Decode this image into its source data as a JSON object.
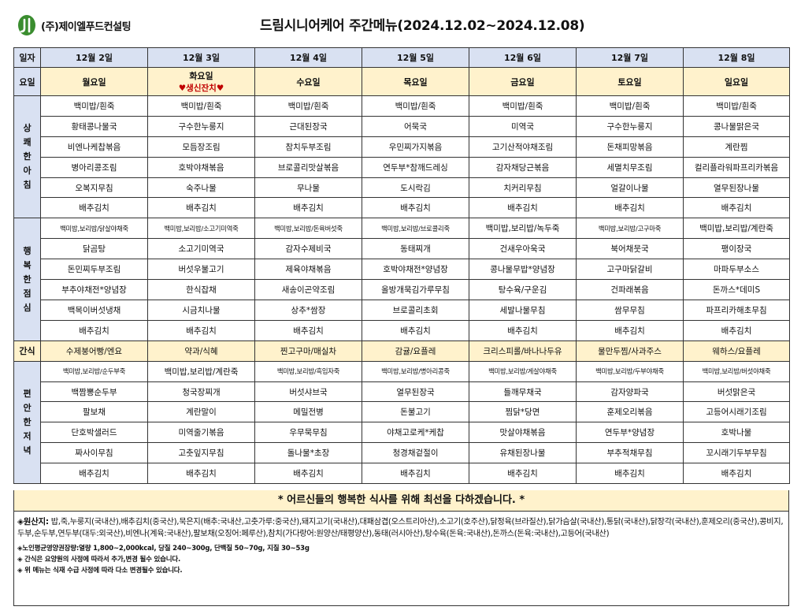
{
  "header": {
    "logo_text": "(주)제이엘푸드컨설팅",
    "title": "드림시니어케어 주간메뉴(2024.12.02~2024.12.08)"
  },
  "colors": {
    "header_blue": "#d9e1f2",
    "highlight_yellow": "#fff2cc",
    "event_red": "#c00000",
    "logo_green": "#3a8d2f"
  },
  "labels": {
    "date": "일자",
    "day": "요일",
    "snack": "간식"
  },
  "days": [
    {
      "date": "12월 2일",
      "day": "월요일",
      "event": ""
    },
    {
      "date": "12월 3일",
      "day": "화요일",
      "event": "♥생신잔치♥"
    },
    {
      "date": "12월 4일",
      "day": "수요일",
      "event": ""
    },
    {
      "date": "12월 5일",
      "day": "목요일",
      "event": ""
    },
    {
      "date": "12월 6일",
      "day": "금요일",
      "event": ""
    },
    {
      "date": "12월 7일",
      "day": "토요일",
      "event": ""
    },
    {
      "date": "12월 8일",
      "day": "일요일",
      "event": ""
    }
  ],
  "breakfast": {
    "label_chars": [
      "상",
      "쾌",
      "한",
      "아",
      "침"
    ],
    "rows": [
      [
        "백미밥/흰죽",
        "백미밥/흰죽",
        "백미밥/흰죽",
        "백미밥/흰죽",
        "백미밥/흰죽",
        "백미밥/흰죽",
        "백미밥/흰죽"
      ],
      [
        "황태콩나물국",
        "구수한누룽지",
        "근대된장국",
        "어묵국",
        "미역국",
        "구수한누룽지",
        "콩나물맑은국"
      ],
      [
        "비엔나케찹볶음",
        "모듬장조림",
        "참치두부조림",
        "우민찌가지볶음",
        "고기산적야채조림",
        "돈채피망볶음",
        "계란찜"
      ],
      [
        "병아리콩조림",
        "호박야채볶음",
        "브로콜리맛살볶음",
        "연두부*참깨드레싱",
        "감자채당근볶음",
        "세멸치무조림",
        "컬리플라워파프리카볶음"
      ],
      [
        "오복지무침",
        "숙주나물",
        "무나물",
        "도시락김",
        "치커리무침",
        "얼갈이나물",
        "열무된장나물"
      ],
      [
        "배추김치",
        "배추김치",
        "배추김치",
        "배추김치",
        "배추김치",
        "배추김치",
        "배추김치"
      ]
    ]
  },
  "lunch": {
    "label_chars": [
      "행",
      "복",
      "한",
      "점",
      "심"
    ],
    "rows": [
      [
        "백미밥,보리밥/닭살야채죽",
        "백미밥,보리밥/소고기미역죽",
        "백미밥,보리밥/돈육버섯죽",
        "백미밥,보리밥/브로콜리죽",
        "백미밥,보리밥/녹두죽",
        "백미밥,보리밥/고구마죽",
        "백미밥,보리밥/계란죽"
      ],
      [
        "닭곰탕",
        "소고기미역국",
        "감자수제비국",
        "동태찌개",
        "건새우아욱국",
        "북어채뭇국",
        "팽이장국"
      ],
      [
        "돈민찌두부조림",
        "버섯우불고기",
        "제육야채볶음",
        "호박야채전*양념장",
        "콩나물무밥*양념장",
        "고구마닭갈비",
        "마파두부소스"
      ],
      [
        "부추야채전*양념장",
        "한식잡채",
        "새송이곤약조림",
        "올방개묵김가루무침",
        "탕수육/구운김",
        "건파래볶음",
        "돈까스*데미S"
      ],
      [
        "백목이버섯냉채",
        "시금치나물",
        "상추*쌈장",
        "브로콜리초회",
        "세발나물무침",
        "쌈무무침",
        "파프리카해초무침"
      ],
      [
        "배추김치",
        "배추김치",
        "배추김치",
        "배추김치",
        "배추김치",
        "배추김치",
        "배추김치"
      ]
    ]
  },
  "snacks": [
    "수제붕어빵/엔요",
    "약과/식혜",
    "찐고구마/매실차",
    "감귤/요플레",
    "크리스피롤/바나나두유",
    "물만두찜/사과주스",
    "웨하스/요플레"
  ],
  "dinner": {
    "label_chars": [
      "편",
      "안",
      "한",
      "저",
      "녁"
    ],
    "rows": [
      [
        "백미밥,보리밥/순두부죽",
        "백미밥,보리밥/계란죽",
        "백미밥,보리밥/흑임자죽",
        "백미밥,보리밥/병아리콩죽",
        "백미밥,보리밥/게살야채죽",
        "백미밥,보리밥/두부야채죽",
        "백미밥,보리밥/버섯야채죽"
      ],
      [
        "백짬뽕순두부",
        "청국장찌개",
        "버섯샤브국",
        "열무된장국",
        "들깨무채국",
        "감자양파국",
        "버섯맑은국"
      ],
      [
        "팔보채",
        "계란말이",
        "메밀전병",
        "돈불고기",
        "찜닭*당면",
        "훈제오리볶음",
        "고등어시래기조림"
      ],
      [
        "단호박샐러드",
        "미역줄기볶음",
        "우무묵무침",
        "야채고로케*케찹",
        "맛살야채볶음",
        "연두부*양념장",
        "호박나물"
      ],
      [
        "짜사이무침",
        "고춧잎지무침",
        "돌나물*초장",
        "청경채겉절이",
        "유채된장나물",
        "부추적채무침",
        "꼬시래기두부무침"
      ],
      [
        "배추김치",
        "배추김치",
        "배추김치",
        "배추김치",
        "배추김치",
        "배추김치",
        "배추김치"
      ]
    ]
  },
  "closing": "* 어르신들의 행복한 식사를 위해 최선을 다하겠습니다. *",
  "footer": {
    "origin_label": "◈원산지:",
    "origin_text": " 밥,죽,누룽지(국내산),배추김치(중국산),묵은지(배추:국내산,고춧가루:중국산),돼지고기(국내산),대패삼겹(오스트리아산),소고기(호주산),닭정육(브라질산),닭가슴살(국내산),통닭(국내산),닭장각(국내산),훈제오리(중국산),콩비지,두부,순두부,연두부(대두:외국산),비엔나(계육:국내산),팔보채(오징어:페루산),참치(가다랑어:원양산/태평양산),동태(러시아산),탕수육(돈육:국내산),돈까스(돈육:국내산),고등어(국내산)",
    "notes": [
      "◈노인평균영양권장량:열량 1,800~2,000kcal, 당질 240~300g, 단백질 50~70g, 지질 30~53g",
      "◈ 간식은 요양원의 사정에 따라서 추가,변경 될수 있습니다.",
      "◈ 위 메뉴는 식재 수급 사정에 따라 다소 변경될수 있습니다."
    ]
  }
}
